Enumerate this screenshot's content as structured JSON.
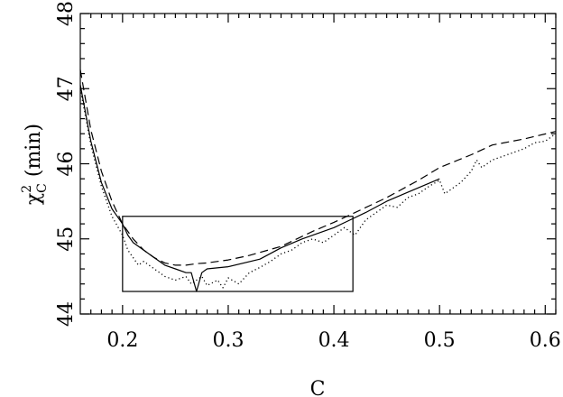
{
  "chart_data": {
    "type": "line",
    "xlabel": "C",
    "ylabel": {
      "main": "χ",
      "sup": "2",
      "sub": "C",
      "rest": " (min)"
    },
    "xlim": [
      0.16,
      0.61
    ],
    "ylim": [
      44,
      48
    ],
    "xticks": [
      0.2,
      0.3,
      0.4,
      0.5,
      0.6
    ],
    "xtick_labels": [
      "0.2",
      "0.3",
      "0.4",
      "0.5",
      "0.6"
    ],
    "yticks": [
      44,
      45,
      46,
      47,
      48
    ],
    "ytick_labels": [
      "44",
      "45",
      "46",
      "47",
      "48"
    ],
    "grid": false,
    "series": [
      {
        "style": "solid",
        "x": [
          0.16,
          0.17,
          0.18,
          0.19,
          0.2,
          0.205,
          0.21,
          0.22,
          0.23,
          0.24,
          0.25,
          0.26,
          0.265,
          0.27,
          0.275,
          0.28,
          0.3,
          0.33,
          0.35,
          0.37,
          0.4,
          0.43,
          0.45,
          0.47,
          0.5
        ],
        "y": [
          47.05,
          46.3,
          45.75,
          45.4,
          45.2,
          45.05,
          44.95,
          44.85,
          44.75,
          44.65,
          44.6,
          44.55,
          44.55,
          44.3,
          44.55,
          44.6,
          44.63,
          44.73,
          44.88,
          45.0,
          45.15,
          45.35,
          45.5,
          45.62,
          45.8
        ]
      },
      {
        "style": "dashed",
        "x": [
          0.16,
          0.17,
          0.18,
          0.19,
          0.2,
          0.21,
          0.22,
          0.23,
          0.24,
          0.25,
          0.26,
          0.27,
          0.28,
          0.3,
          0.32,
          0.35,
          0.38,
          0.4,
          0.42,
          0.45,
          0.48,
          0.5,
          0.53,
          0.55,
          0.58,
          0.61
        ],
        "y": [
          47.25,
          46.45,
          45.9,
          45.5,
          45.2,
          45.0,
          44.85,
          44.75,
          44.68,
          44.65,
          44.65,
          44.67,
          44.68,
          44.72,
          44.78,
          44.9,
          45.1,
          45.22,
          45.35,
          45.55,
          45.78,
          45.95,
          46.12,
          46.25,
          46.33,
          46.43
        ]
      },
      {
        "style": "dotted",
        "x": [
          0.16,
          0.17,
          0.18,
          0.19,
          0.2,
          0.205,
          0.21,
          0.215,
          0.22,
          0.23,
          0.24,
          0.25,
          0.26,
          0.265,
          0.27,
          0.275,
          0.28,
          0.29,
          0.295,
          0.3,
          0.31,
          0.32,
          0.33,
          0.34,
          0.35,
          0.36,
          0.37,
          0.38,
          0.39,
          0.4,
          0.41,
          0.42,
          0.43,
          0.44,
          0.45,
          0.46,
          0.47,
          0.48,
          0.49,
          0.5,
          0.505,
          0.51,
          0.52,
          0.53,
          0.535,
          0.54,
          0.55,
          0.56,
          0.57,
          0.58,
          0.59,
          0.6,
          0.61
        ],
        "y": [
          47.0,
          46.25,
          45.7,
          45.3,
          45.05,
          44.85,
          44.75,
          44.65,
          44.7,
          44.6,
          44.5,
          44.45,
          44.5,
          44.4,
          44.45,
          44.5,
          44.38,
          44.45,
          44.35,
          44.48,
          44.4,
          44.55,
          44.62,
          44.7,
          44.8,
          44.85,
          44.95,
          45.0,
          44.95,
          45.05,
          45.15,
          45.05,
          45.25,
          45.35,
          45.45,
          45.42,
          45.55,
          45.6,
          45.7,
          45.78,
          45.6,
          45.65,
          45.75,
          45.9,
          46.05,
          45.95,
          46.05,
          46.1,
          46.15,
          46.2,
          46.28,
          46.3,
          46.4
        ]
      }
    ],
    "annotations": [
      {
        "type": "rectangle",
        "x0": 0.2,
        "x1": 0.418,
        "y0": 44.3,
        "y1": 45.3
      }
    ]
  }
}
